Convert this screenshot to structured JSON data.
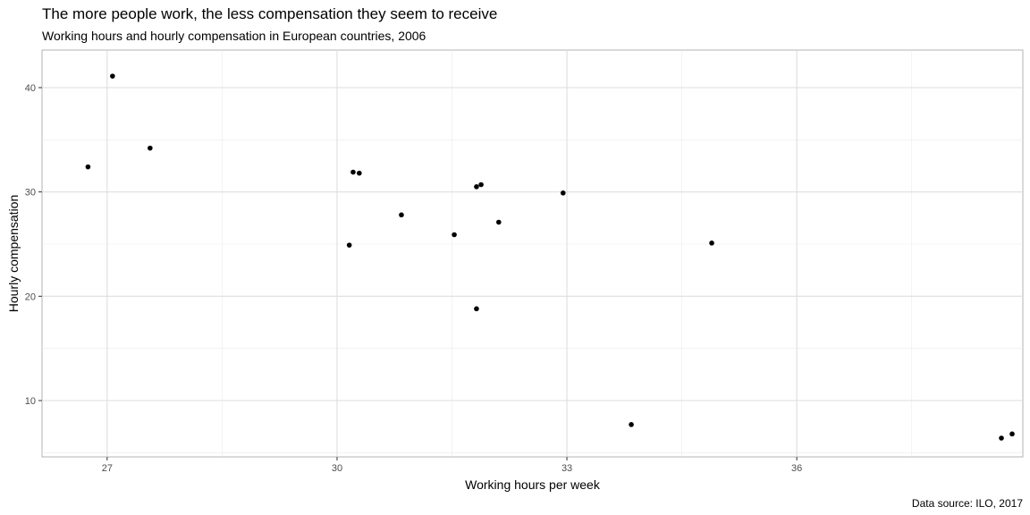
{
  "chart_data": {
    "type": "scatter",
    "title": "The more people work, the less compensation they seem to receive",
    "subtitle": "Working hours and hourly compensation in European countries, 2006",
    "caption": "Data source: ILO, 2017",
    "xlabel": "Working hours per week",
    "ylabel": "Hourly compensation",
    "xlim": [
      26.15,
      38.95
    ],
    "ylim": [
      4.6,
      43.6
    ],
    "xticks": [
      27,
      30,
      33,
      36
    ],
    "yticks": [
      10,
      20,
      30,
      40
    ],
    "grid": true,
    "point_color": "#000000",
    "points": [
      {
        "x": 26.75,
        "y": 32.4
      },
      {
        "x": 27.07,
        "y": 41.1
      },
      {
        "x": 27.56,
        "y": 34.2
      },
      {
        "x": 30.16,
        "y": 24.9
      },
      {
        "x": 30.21,
        "y": 31.9
      },
      {
        "x": 30.29,
        "y": 31.8
      },
      {
        "x": 30.84,
        "y": 27.8
      },
      {
        "x": 31.53,
        "y": 25.9
      },
      {
        "x": 31.82,
        "y": 18.8
      },
      {
        "x": 31.82,
        "y": 30.5
      },
      {
        "x": 31.88,
        "y": 30.7
      },
      {
        "x": 32.11,
        "y": 27.1
      },
      {
        "x": 32.95,
        "y": 29.9
      },
      {
        "x": 33.84,
        "y": 7.7
      },
      {
        "x": 34.89,
        "y": 25.1
      },
      {
        "x": 38.67,
        "y": 6.4
      },
      {
        "x": 38.81,
        "y": 6.8
      }
    ]
  }
}
